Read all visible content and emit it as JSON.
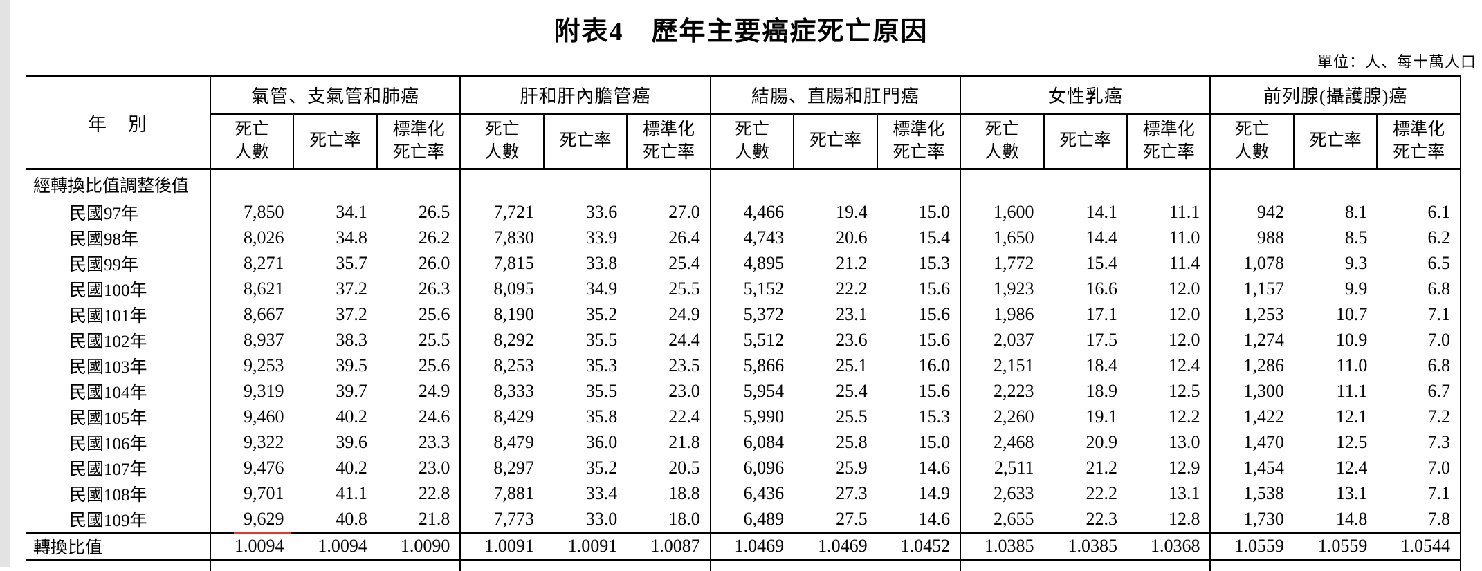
{
  "page": {
    "title": "附表4　歷年主要癌症死亡原因",
    "unit_note": "單位：人、每十萬人口"
  },
  "table": {
    "year_column_header": "年　別",
    "groups": [
      "氣管、支氣管和肺癌",
      "肝和肝內膽管癌",
      "結腸、直腸和肛門癌",
      "女性乳癌",
      "前列腺(攝護腺)癌"
    ],
    "subcolumns": [
      "死亡\n人數",
      "死亡率",
      "標準化\n死亡率"
    ],
    "section_label": "經轉換比值調整後值",
    "rows": [
      {
        "label": "民國97年",
        "values": [
          "7,850",
          "34.1",
          "26.5",
          "7,721",
          "33.6",
          "27.0",
          "4,466",
          "19.4",
          "15.0",
          "1,600",
          "14.1",
          "11.1",
          "942",
          "8.1",
          "6.1"
        ]
      },
      {
        "label": "民國98年",
        "values": [
          "8,026",
          "34.8",
          "26.2",
          "7,830",
          "33.9",
          "26.4",
          "4,743",
          "20.6",
          "15.4",
          "1,650",
          "14.4",
          "11.0",
          "988",
          "8.5",
          "6.2"
        ]
      },
      {
        "label": "民國99年",
        "values": [
          "8,271",
          "35.7",
          "26.0",
          "7,815",
          "33.8",
          "25.4",
          "4,895",
          "21.2",
          "15.3",
          "1,772",
          "15.4",
          "11.4",
          "1,078",
          "9.3",
          "6.5"
        ]
      },
      {
        "label": "民國100年",
        "values": [
          "8,621",
          "37.2",
          "26.3",
          "8,095",
          "34.9",
          "25.5",
          "5,152",
          "22.2",
          "15.6",
          "1,923",
          "16.6",
          "12.0",
          "1,157",
          "9.9",
          "6.8"
        ]
      },
      {
        "label": "民國101年",
        "values": [
          "8,667",
          "37.2",
          "25.6",
          "8,190",
          "35.2",
          "24.9",
          "5,372",
          "23.1",
          "15.6",
          "1,986",
          "17.1",
          "12.0",
          "1,253",
          "10.7",
          "7.1"
        ]
      },
      {
        "label": "民國102年",
        "values": [
          "8,937",
          "38.3",
          "25.5",
          "8,292",
          "35.5",
          "24.4",
          "5,512",
          "23.6",
          "15.6",
          "2,037",
          "17.5",
          "12.0",
          "1,274",
          "10.9",
          "7.0"
        ]
      },
      {
        "label": "民國103年",
        "values": [
          "9,253",
          "39.5",
          "25.6",
          "8,253",
          "35.3",
          "23.5",
          "5,866",
          "25.1",
          "16.0",
          "2,151",
          "18.4",
          "12.4",
          "1,286",
          "11.0",
          "6.8"
        ]
      },
      {
        "label": "民國104年",
        "values": [
          "9,319",
          "39.7",
          "24.9",
          "8,333",
          "35.5",
          "23.0",
          "5,954",
          "25.4",
          "15.6",
          "2,223",
          "18.9",
          "12.5",
          "1,300",
          "11.1",
          "6.7"
        ]
      },
      {
        "label": "民國105年",
        "values": [
          "9,460",
          "40.2",
          "24.6",
          "8,429",
          "35.8",
          "22.4",
          "5,990",
          "25.5",
          "15.3",
          "2,260",
          "19.1",
          "12.2",
          "1,422",
          "12.1",
          "7.2"
        ]
      },
      {
        "label": "民國106年",
        "values": [
          "9,322",
          "39.6",
          "23.3",
          "8,479",
          "36.0",
          "21.8",
          "6,084",
          "25.8",
          "15.0",
          "2,468",
          "20.9",
          "13.0",
          "1,470",
          "12.5",
          "7.3"
        ]
      },
      {
        "label": "民國107年",
        "values": [
          "9,476",
          "40.2",
          "23.0",
          "8,297",
          "35.2",
          "20.5",
          "6,096",
          "25.9",
          "14.6",
          "2,511",
          "21.2",
          "12.9",
          "1,454",
          "12.4",
          "7.0"
        ]
      },
      {
        "label": "民國108年",
        "values": [
          "9,701",
          "41.1",
          "22.8",
          "7,881",
          "33.4",
          "18.8",
          "6,436",
          "27.3",
          "14.9",
          "2,633",
          "22.2",
          "13.1",
          "1,538",
          "13.1",
          "7.1"
        ]
      },
      {
        "label": "民國109年",
        "values": [
          "9,629",
          "40.8",
          "21.8",
          "7,773",
          "33.0",
          "18.0",
          "6,489",
          "27.5",
          "14.6",
          "2,655",
          "22.3",
          "12.8",
          "1,730",
          "14.8",
          "7.8"
        ],
        "underlined_value_index": 0
      }
    ],
    "ratio_row": {
      "label": "轉換比值",
      "values": [
        "1.0094",
        "1.0094",
        "1.0090",
        "1.0091",
        "1.0091",
        "1.0087",
        "1.0469",
        "1.0469",
        "1.0452",
        "1.0385",
        "1.0385",
        "1.0368",
        "1.0559",
        "1.0559",
        "1.0544"
      ]
    },
    "underline_color": "#e5372b"
  }
}
